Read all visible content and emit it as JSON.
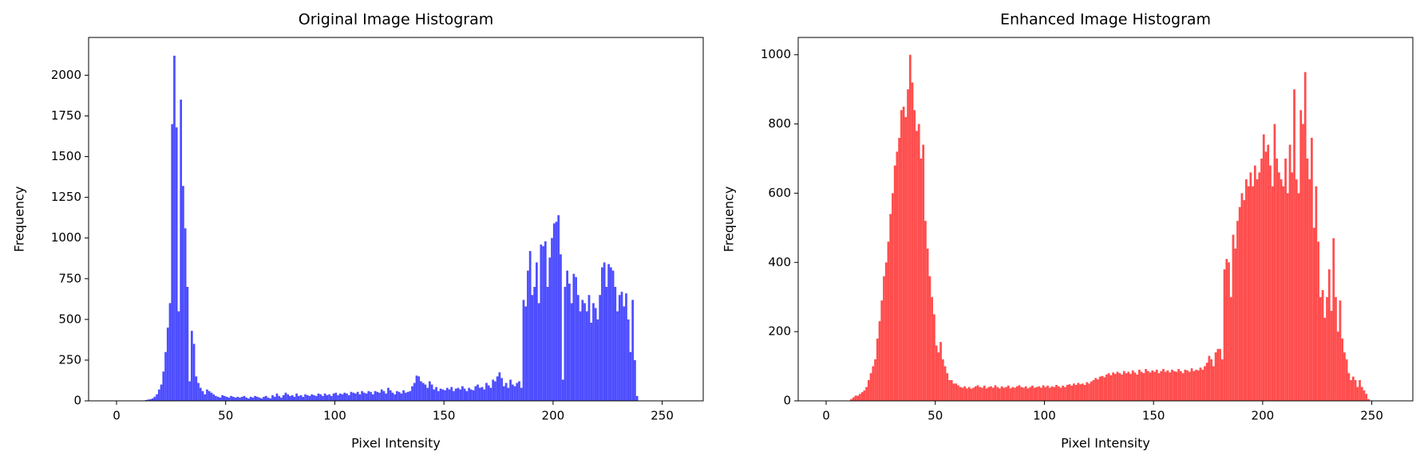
{
  "chart_data": [
    {
      "type": "histogram",
      "title": "Original Image Histogram",
      "xlabel": "Pixel Intensity",
      "ylabel": "Frequency",
      "color": "#4d4dff",
      "bins": [
        0,
        1,
        2,
        3,
        4,
        5,
        6,
        7,
        8,
        9,
        10,
        11,
        12,
        13,
        14,
        15,
        16,
        17,
        18,
        19,
        20,
        21,
        22,
        23,
        24,
        25,
        26,
        27,
        28,
        29,
        30,
        31,
        32,
        33,
        34,
        35,
        36,
        37,
        38,
        39,
        40,
        41,
        42,
        43,
        44,
        45,
        46,
        47,
        48,
        49,
        50,
        51,
        52,
        53,
        54,
        55,
        56,
        57,
        58,
        59,
        60,
        61,
        62,
        63,
        64,
        65,
        66,
        67,
        68,
        69,
        70,
        71,
        72,
        73,
        74,
        75,
        76,
        77,
        78,
        79,
        80,
        81,
        82,
        83,
        84,
        85,
        86,
        87,
        88,
        89,
        90,
        91,
        92,
        93,
        94,
        95,
        96,
        97,
        98,
        99,
        100,
        101,
        102,
        103,
        104,
        105,
        106,
        107,
        108,
        109,
        110,
        111,
        112,
        113,
        114,
        115,
        116,
        117,
        118,
        119,
        120,
        121,
        122,
        123,
        124,
        125,
        126,
        127,
        128,
        129,
        130,
        131,
        132,
        133,
        134,
        135,
        136,
        137,
        138,
        139,
        140,
        141,
        142,
        143,
        144,
        145,
        146,
        147,
        148,
        149,
        150,
        151,
        152,
        153,
        154,
        155,
        156,
        157,
        158,
        159,
        160,
        161,
        162,
        163,
        164,
        165,
        166,
        167,
        168,
        169,
        170,
        171,
        172,
        173,
        174,
        175,
        176,
        177,
        178,
        179,
        180,
        181,
        182,
        183,
        184,
        185,
        186,
        187,
        188,
        189,
        190,
        191,
        192,
        193,
        194,
        195,
        196,
        197,
        198,
        199,
        200,
        201,
        202,
        203,
        204,
        205,
        206,
        207,
        208,
        209,
        210,
        211,
        212,
        213,
        214,
        215,
        216,
        217,
        218,
        219,
        220,
        221,
        222,
        223,
        224,
        225,
        226,
        227,
        228,
        229,
        230,
        231,
        232,
        233,
        234,
        235,
        236,
        237,
        238,
        239,
        240,
        241,
        242,
        243,
        244,
        245,
        246,
        247,
        248,
        249,
        250,
        251,
        252,
        253,
        254,
        255,
        256
      ],
      "values": [
        0,
        0,
        0,
        0,
        0,
        0,
        0,
        0,
        0,
        0,
        0,
        0,
        2,
        5,
        8,
        10,
        15,
        25,
        40,
        70,
        100,
        180,
        300,
        450,
        600,
        1700,
        2120,
        1680,
        550,
        1850,
        1320,
        1060,
        700,
        120,
        430,
        350,
        150,
        110,
        80,
        60,
        40,
        70,
        60,
        50,
        40,
        30,
        25,
        20,
        35,
        30,
        25,
        20,
        30,
        25,
        20,
        25,
        20,
        25,
        30,
        20,
        15,
        25,
        20,
        30,
        25,
        20,
        15,
        25,
        30,
        20,
        15,
        35,
        25,
        45,
        30,
        20,
        35,
        50,
        40,
        30,
        35,
        25,
        45,
        30,
        35,
        25,
        40,
        35,
        30,
        40,
        35,
        30,
        45,
        40,
        30,
        45,
        35,
        40,
        30,
        45,
        50,
        35,
        45,
        40,
        50,
        45,
        35,
        55,
        50,
        45,
        55,
        40,
        60,
        50,
        45,
        60,
        55,
        40,
        60,
        55,
        50,
        70,
        60,
        45,
        80,
        65,
        50,
        40,
        60,
        55,
        45,
        65,
        50,
        55,
        60,
        90,
        110,
        155,
        150,
        120,
        110,
        100,
        80,
        120,
        100,
        70,
        85,
        60,
        75,
        70,
        65,
        80,
        70,
        85,
        60,
        75,
        80,
        70,
        90,
        75,
        60,
        80,
        70,
        65,
        90,
        100,
        80,
        85,
        70,
        110,
        95,
        80,
        130,
        120,
        150,
        175,
        140,
        90,
        110,
        80,
        130,
        100,
        90,
        110,
        120,
        80,
        620,
        580,
        800,
        920,
        650,
        700,
        850,
        600,
        960,
        950,
        980,
        700,
        880,
        1000,
        1090,
        1100,
        1140,
        900,
        130,
        700,
        800,
        720,
        600,
        780,
        760,
        650,
        550,
        620,
        600,
        550,
        650,
        480,
        600,
        570,
        500,
        650,
        820,
        850,
        700,
        840,
        820,
        800,
        700,
        550,
        650,
        670,
        580,
        660,
        500,
        300,
        620,
        250,
        30,
        0,
        0,
        0,
        0,
        0,
        0,
        0,
        0,
        0,
        0,
        0,
        0,
        0,
        0,
        0,
        0,
        0
      ],
      "xlim": [
        -12.8,
        268.8
      ],
      "xticks": [
        0,
        50,
        100,
        150,
        200,
        250
      ],
      "ylim": [
        0,
        2232
      ],
      "yticks": [
        0,
        250,
        500,
        750,
        1000,
        1250,
        1500,
        1750,
        2000
      ]
    },
    {
      "type": "histogram",
      "title": "Enhanced Image Histogram",
      "xlabel": "Pixel Intensity",
      "ylabel": "Frequency",
      "color": "#ff4d4d",
      "bins": [
        0,
        1,
        2,
        3,
        4,
        5,
        6,
        7,
        8,
        9,
        10,
        11,
        12,
        13,
        14,
        15,
        16,
        17,
        18,
        19,
        20,
        21,
        22,
        23,
        24,
        25,
        26,
        27,
        28,
        29,
        30,
        31,
        32,
        33,
        34,
        35,
        36,
        37,
        38,
        39,
        40,
        41,
        42,
        43,
        44,
        45,
        46,
        47,
        48,
        49,
        50,
        51,
        52,
        53,
        54,
        55,
        56,
        57,
        58,
        59,
        60,
        61,
        62,
        63,
        64,
        65,
        66,
        67,
        68,
        69,
        70,
        71,
        72,
        73,
        74,
        75,
        76,
        77,
        78,
        79,
        80,
        81,
        82,
        83,
        84,
        85,
        86,
        87,
        88,
        89,
        90,
        91,
        92,
        93,
        94,
        95,
        96,
        97,
        98,
        99,
        100,
        101,
        102,
        103,
        104,
        105,
        106,
        107,
        108,
        109,
        110,
        111,
        112,
        113,
        114,
        115,
        116,
        117,
        118,
        119,
        120,
        121,
        122,
        123,
        124,
        125,
        126,
        127,
        128,
        129,
        130,
        131,
        132,
        133,
        134,
        135,
        136,
        137,
        138,
        139,
        140,
        141,
        142,
        143,
        144,
        145,
        146,
        147,
        148,
        149,
        150,
        151,
        152,
        153,
        154,
        155,
        156,
        157,
        158,
        159,
        160,
        161,
        162,
        163,
        164,
        165,
        166,
        167,
        168,
        169,
        170,
        171,
        172,
        173,
        174,
        175,
        176,
        177,
        178,
        179,
        180,
        181,
        182,
        183,
        184,
        185,
        186,
        187,
        188,
        189,
        190,
        191,
        192,
        193,
        194,
        195,
        196,
        197,
        198,
        199,
        200,
        201,
        202,
        203,
        204,
        205,
        206,
        207,
        208,
        209,
        210,
        211,
        212,
        213,
        214,
        215,
        216,
        217,
        218,
        219,
        220,
        221,
        222,
        223,
        224,
        225,
        226,
        227,
        228,
        229,
        230,
        231,
        232,
        233,
        234,
        235,
        236,
        237,
        238,
        239,
        240,
        241,
        242,
        243,
        244,
        245,
        246,
        247,
        248,
        249,
        250,
        251,
        252,
        253,
        254,
        255,
        256
      ],
      "values": [
        0,
        0,
        0,
        0,
        0,
        0,
        0,
        0,
        0,
        0,
        0,
        5,
        10,
        15,
        15,
        20,
        25,
        30,
        40,
        60,
        80,
        100,
        120,
        180,
        230,
        290,
        360,
        400,
        460,
        540,
        600,
        680,
        720,
        760,
        840,
        850,
        820,
        900,
        1000,
        920,
        840,
        780,
        800,
        700,
        740,
        520,
        440,
        360,
        300,
        250,
        160,
        140,
        170,
        120,
        100,
        80,
        60,
        60,
        50,
        50,
        45,
        40,
        38,
        42,
        36,
        40,
        35,
        38,
        42,
        45,
        40,
        38,
        44,
        36,
        40,
        42,
        38,
        45,
        40,
        36,
        42,
        38,
        40,
        44,
        36,
        40,
        38,
        42,
        45,
        40,
        38,
        42,
        36,
        40,
        44,
        38,
        40,
        42,
        38,
        45,
        40,
        44,
        38,
        42,
        40,
        46,
        42,
        38,
        44,
        40,
        46,
        48,
        44,
        50,
        46,
        52,
        48,
        50,
        46,
        54,
        50,
        56,
        60,
        66,
        62,
        70,
        72,
        68,
        76,
        80,
        74,
        82,
        78,
        84,
        80,
        76,
        86,
        80,
        84,
        78,
        88,
        82,
        76,
        90,
        84,
        80,
        92,
        86,
        82,
        88,
        84,
        90,
        80,
        86,
        92,
        84,
        88,
        82,
        90,
        86,
        84,
        92,
        86,
        80,
        90,
        88,
        84,
        94,
        86,
        90,
        88,
        96,
        90,
        100,
        110,
        130,
        120,
        100,
        140,
        150,
        150,
        120,
        380,
        410,
        400,
        300,
        480,
        440,
        520,
        560,
        600,
        580,
        640,
        620,
        660,
        620,
        680,
        640,
        660,
        700,
        770,
        720,
        740,
        680,
        620,
        800,
        700,
        660,
        640,
        620,
        700,
        600,
        740,
        660,
        900,
        640,
        600,
        840,
        800,
        950,
        700,
        640,
        760,
        500,
        620,
        460,
        300,
        320,
        240,
        300,
        380,
        260,
        470,
        300,
        200,
        290,
        180,
        140,
        120,
        80,
        60,
        70,
        60,
        40,
        60,
        40,
        30,
        20,
        5,
        0,
        0,
        0,
        0,
        0,
        0,
        0
      ],
      "xlim": [
        -12.8,
        268.8
      ],
      "xticks": [
        0,
        50,
        100,
        150,
        200,
        250
      ],
      "ylim": [
        0,
        1050
      ],
      "yticks": [
        0,
        200,
        400,
        600,
        800,
        1000
      ]
    }
  ]
}
